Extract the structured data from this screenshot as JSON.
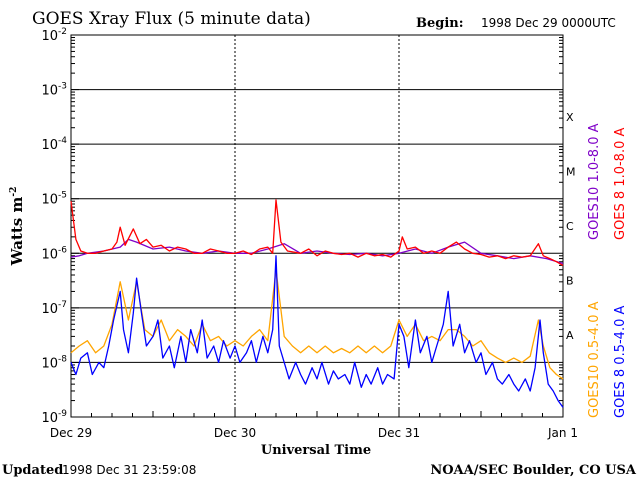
{
  "header": {
    "title": "GOES Xray Flux (5 minute data)",
    "begin_label": "Begin:",
    "begin_value": "1998 Dec 29 0000UTC"
  },
  "footer": {
    "updated_label": "Updated",
    "updated_value": "1998 Dec 31 23:59:08",
    "credit": "NOAA/SEC Boulder, CO USA"
  },
  "colors": {
    "goes8_long": "#ff0000",
    "goes10_long": "#7f00c8",
    "goes8_short": "#0000ff",
    "goes10_short": "#ffa500",
    "grid": "#000000",
    "background": "#ffffff"
  },
  "chart_data": {
    "type": "line",
    "title": "GOES Xray Flux (5 minute data)",
    "xlabel": "Universal Time",
    "ylabel": "Watts m",
    "ylabel_superscript": "-2",
    "y_scale": "log",
    "ylim": [
      1e-09,
      0.01
    ],
    "xlim_days": [
      0,
      3
    ],
    "x_ticks": [
      {
        "day": 0,
        "label": "Dec 29"
      },
      {
        "day": 1,
        "label": "Dec 30"
      },
      {
        "day": 2,
        "label": "Dec 31"
      },
      {
        "day": 3,
        "label": "Jan 1"
      }
    ],
    "y_ticks": [
      {
        "value": 1e-09,
        "base": "10",
        "exp": "-9"
      },
      {
        "value": 1e-08,
        "base": "10",
        "exp": "-8"
      },
      {
        "value": 1e-07,
        "base": "10",
        "exp": "-7"
      },
      {
        "value": 1e-06,
        "base": "10",
        "exp": "-6"
      },
      {
        "value": 1e-05,
        "base": "10",
        "exp": "-5"
      },
      {
        "value": 0.0001,
        "base": "10",
        "exp": "-4"
      },
      {
        "value": 0.001,
        "base": "10",
        "exp": "-3"
      },
      {
        "value": 0.01,
        "base": "10",
        "exp": "-2"
      }
    ],
    "flare_classes": [
      {
        "label": "A",
        "low": 1e-08,
        "high": 1e-07
      },
      {
        "label": "B",
        "low": 1e-07,
        "high": 1e-06
      },
      {
        "label": "C",
        "low": 1e-06,
        "high": 1e-05
      },
      {
        "label": "M",
        "low": 1e-05,
        "high": 0.0001
      },
      {
        "label": "X",
        "low": 0.0001,
        "high": 0.001
      }
    ],
    "grid": true,
    "series": [
      {
        "name": "GOES10 1.0-8.0 A",
        "color": "#7f00c8",
        "points": [
          [
            0,
            8.5e-07
          ],
          [
            0.05,
            9e-07
          ],
          [
            0.1,
            1e-06
          ],
          [
            0.2,
            1.1e-06
          ],
          [
            0.3,
            1.3e-06
          ],
          [
            0.35,
            1.8e-06
          ],
          [
            0.4,
            1.6e-06
          ],
          [
            0.5,
            1.2e-06
          ],
          [
            0.6,
            1.3e-06
          ],
          [
            0.7,
            1.1e-06
          ],
          [
            0.8,
            1e-06
          ],
          [
            0.9,
            1.1e-06
          ],
          [
            1.0,
            1e-06
          ],
          [
            1.1,
            1e-06
          ],
          [
            1.2,
            1.2e-06
          ],
          [
            1.3,
            1.5e-06
          ],
          [
            1.4,
            1e-06
          ],
          [
            1.5,
            1.1e-06
          ],
          [
            1.6,
            1e-06
          ],
          [
            1.7,
            9.5e-07
          ],
          [
            1.8,
            1e-06
          ],
          [
            1.9,
            9e-07
          ],
          [
            2.0,
            1e-06
          ],
          [
            2.1,
            1.2e-06
          ],
          [
            2.2,
            1e-06
          ],
          [
            2.3,
            1.3e-06
          ],
          [
            2.4,
            1.6e-06
          ],
          [
            2.5,
            1e-06
          ],
          [
            2.6,
            9e-07
          ],
          [
            2.7,
            8e-07
          ],
          [
            2.8,
            9e-07
          ],
          [
            2.9,
            8e-07
          ],
          [
            3.0,
            6.5e-07
          ]
        ]
      },
      {
        "name": "GOES 8 1.0-8.0 A",
        "color": "#ff0000",
        "points": [
          [
            0,
            9e-06
          ],
          [
            0.03,
            1.8e-06
          ],
          [
            0.06,
            1.1e-06
          ],
          [
            0.1,
            1e-06
          ],
          [
            0.15,
            1e-06
          ],
          [
            0.2,
            1.1e-06
          ],
          [
            0.25,
            1.2e-06
          ],
          [
            0.28,
            1.6e-06
          ],
          [
            0.3,
            3e-06
          ],
          [
            0.33,
            1.4e-06
          ],
          [
            0.38,
            2.8e-06
          ],
          [
            0.42,
            1.5e-06
          ],
          [
            0.46,
            1.8e-06
          ],
          [
            0.5,
            1.3e-06
          ],
          [
            0.55,
            1.4e-06
          ],
          [
            0.6,
            1.1e-06
          ],
          [
            0.65,
            1.3e-06
          ],
          [
            0.7,
            1.2e-06
          ],
          [
            0.75,
            1e-06
          ],
          [
            0.8,
            1e-06
          ],
          [
            0.85,
            1.2e-06
          ],
          [
            0.9,
            1.1e-06
          ],
          [
            0.95,
            1e-06
          ],
          [
            1.0,
            1e-06
          ],
          [
            1.05,
            1.1e-06
          ],
          [
            1.1,
            9.5e-07
          ],
          [
            1.15,
            1.2e-06
          ],
          [
            1.2,
            1.3e-06
          ],
          [
            1.23,
            1e-06
          ],
          [
            1.25,
            9.5e-06
          ],
          [
            1.28,
            1.6e-06
          ],
          [
            1.32,
            1.1e-06
          ],
          [
            1.4,
            1e-06
          ],
          [
            1.45,
            1.2e-06
          ],
          [
            1.5,
            9e-07
          ],
          [
            1.55,
            1.1e-06
          ],
          [
            1.6,
            1e-06
          ],
          [
            1.65,
            9.5e-07
          ],
          [
            1.7,
            1e-06
          ],
          [
            1.75,
            8.5e-07
          ],
          [
            1.8,
            1e-06
          ],
          [
            1.85,
            9e-07
          ],
          [
            1.9,
            9.5e-07
          ],
          [
            1.95,
            8.5e-07
          ],
          [
            2.0,
            1.1e-06
          ],
          [
            2.02,
            2e-06
          ],
          [
            2.05,
            1.2e-06
          ],
          [
            2.1,
            1.3e-06
          ],
          [
            2.15,
            1e-06
          ],
          [
            2.2,
            1.1e-06
          ],
          [
            2.25,
            1e-06
          ],
          [
            2.3,
            1.3e-06
          ],
          [
            2.35,
            1.6e-06
          ],
          [
            2.4,
            1.2e-06
          ],
          [
            2.45,
            1e-06
          ],
          [
            2.5,
            9.5e-07
          ],
          [
            2.55,
            8.5e-07
          ],
          [
            2.6,
            9e-07
          ],
          [
            2.65,
            8e-07
          ],
          [
            2.7,
            9e-07
          ],
          [
            2.75,
            8.5e-07
          ],
          [
            2.8,
            9e-07
          ],
          [
            2.85,
            1.5e-06
          ],
          [
            2.88,
            9e-07
          ],
          [
            2.92,
            8e-07
          ],
          [
            2.96,
            7e-07
          ],
          [
            3.0,
            6e-07
          ]
        ]
      },
      {
        "name": "GOES10 0.5-4.0 A",
        "color": "#ffa500",
        "points": [
          [
            0,
            1.5e-08
          ],
          [
            0.05,
            2e-08
          ],
          [
            0.1,
            2.5e-08
          ],
          [
            0.15,
            1.5e-08
          ],
          [
            0.2,
            2e-08
          ],
          [
            0.25,
            5e-08
          ],
          [
            0.3,
            3e-07
          ],
          [
            0.35,
            6e-08
          ],
          [
            0.4,
            3e-07
          ],
          [
            0.45,
            4e-08
          ],
          [
            0.5,
            3e-08
          ],
          [
            0.55,
            6e-08
          ],
          [
            0.6,
            2.5e-08
          ],
          [
            0.65,
            4e-08
          ],
          [
            0.7,
            3e-08
          ],
          [
            0.75,
            2e-08
          ],
          [
            0.8,
            5e-08
          ],
          [
            0.85,
            2.5e-08
          ],
          [
            0.9,
            3e-08
          ],
          [
            0.95,
            2e-08
          ],
          [
            1.0,
            2.5e-08
          ],
          [
            1.05,
            2e-08
          ],
          [
            1.1,
            3e-08
          ],
          [
            1.15,
            4e-08
          ],
          [
            1.2,
            2.5e-08
          ],
          [
            1.25,
            5e-07
          ],
          [
            1.3,
            3e-08
          ],
          [
            1.35,
            2e-08
          ],
          [
            1.4,
            1.5e-08
          ],
          [
            1.45,
            2e-08
          ],
          [
            1.5,
            1.5e-08
          ],
          [
            1.55,
            2e-08
          ],
          [
            1.6,
            1.5e-08
          ],
          [
            1.65,
            1.8e-08
          ],
          [
            1.7,
            1.5e-08
          ],
          [
            1.75,
            2e-08
          ],
          [
            1.8,
            1.5e-08
          ],
          [
            1.85,
            2e-08
          ],
          [
            1.9,
            1.5e-08
          ],
          [
            1.95,
            2e-08
          ],
          [
            2.0,
            6e-08
          ],
          [
            2.05,
            3e-08
          ],
          [
            2.1,
            5e-08
          ],
          [
            2.15,
            2.5e-08
          ],
          [
            2.2,
            3e-08
          ],
          [
            2.25,
            2.5e-08
          ],
          [
            2.3,
            4e-08
          ],
          [
            2.35,
            4e-08
          ],
          [
            2.4,
            3e-08
          ],
          [
            2.45,
            2e-08
          ],
          [
            2.5,
            2.5e-08
          ],
          [
            2.55,
            1.5e-08
          ],
          [
            2.6,
            1.2e-08
          ],
          [
            2.65,
            1e-08
          ],
          [
            2.7,
            1.2e-08
          ],
          [
            2.75,
            1e-08
          ],
          [
            2.8,
            1.3e-08
          ],
          [
            2.85,
            6e-08
          ],
          [
            2.88,
            2e-08
          ],
          [
            2.92,
            8e-09
          ],
          [
            2.96,
            6e-09
          ],
          [
            3.0,
            5e-09
          ]
        ]
      },
      {
        "name": "GOES 8 0.5-4.0 A",
        "color": "#0000ff",
        "points": [
          [
            0,
            1e-08
          ],
          [
            0.03,
            6e-09
          ],
          [
            0.06,
            1.2e-08
          ],
          [
            0.1,
            1.5e-08
          ],
          [
            0.13,
            6e-09
          ],
          [
            0.17,
            1e-08
          ],
          [
            0.2,
            8e-09
          ],
          [
            0.23,
            2e-08
          ],
          [
            0.26,
            6e-08
          ],
          [
            0.3,
            2e-07
          ],
          [
            0.32,
            4e-08
          ],
          [
            0.35,
            1.5e-08
          ],
          [
            0.38,
            8e-08
          ],
          [
            0.4,
            3.5e-07
          ],
          [
            0.43,
            8e-08
          ],
          [
            0.46,
            2e-08
          ],
          [
            0.5,
            3e-08
          ],
          [
            0.53,
            6e-08
          ],
          [
            0.56,
            1.2e-08
          ],
          [
            0.6,
            2e-08
          ],
          [
            0.63,
            8e-09
          ],
          [
            0.67,
            3e-08
          ],
          [
            0.7,
            1e-08
          ],
          [
            0.73,
            4e-08
          ],
          [
            0.77,
            1.5e-08
          ],
          [
            0.8,
            6e-08
          ],
          [
            0.83,
            1.2e-08
          ],
          [
            0.87,
            2e-08
          ],
          [
            0.9,
            1e-08
          ],
          [
            0.93,
            2.5e-08
          ],
          [
            0.97,
            1.2e-08
          ],
          [
            1.0,
            2e-08
          ],
          [
            1.03,
            1e-08
          ],
          [
            1.07,
            1.5e-08
          ],
          [
            1.1,
            2.5e-08
          ],
          [
            1.13,
            1e-08
          ],
          [
            1.17,
            3e-08
          ],
          [
            1.2,
            1.5e-08
          ],
          [
            1.23,
            4e-08
          ],
          [
            1.25,
            9e-07
          ],
          [
            1.27,
            2e-08
          ],
          [
            1.3,
            1e-08
          ],
          [
            1.33,
            5e-09
          ],
          [
            1.37,
            1e-08
          ],
          [
            1.4,
            6e-09
          ],
          [
            1.43,
            4e-09
          ],
          [
            1.47,
            8e-09
          ],
          [
            1.5,
            5e-09
          ],
          [
            1.53,
            1e-08
          ],
          [
            1.57,
            4e-09
          ],
          [
            1.6,
            7e-09
          ],
          [
            1.63,
            5e-09
          ],
          [
            1.67,
            6e-09
          ],
          [
            1.7,
            4e-09
          ],
          [
            1.73,
            1e-08
          ],
          [
            1.77,
            3.5e-09
          ],
          [
            1.8,
            6e-09
          ],
          [
            1.83,
            4e-09
          ],
          [
            1.87,
            8e-09
          ],
          [
            1.9,
            4e-09
          ],
          [
            1.93,
            6e-09
          ],
          [
            1.97,
            5e-09
          ],
          [
            2.0,
            5e-08
          ],
          [
            2.03,
            3e-08
          ],
          [
            2.06,
            8e-09
          ],
          [
            2.1,
            6e-08
          ],
          [
            2.13,
            1.5e-08
          ],
          [
            2.17,
            3e-08
          ],
          [
            2.2,
            1e-08
          ],
          [
            2.23,
            2e-08
          ],
          [
            2.27,
            5e-08
          ],
          [
            2.3,
            2e-07
          ],
          [
            2.33,
            2e-08
          ],
          [
            2.37,
            5e-08
          ],
          [
            2.4,
            1.5e-08
          ],
          [
            2.43,
            2.5e-08
          ],
          [
            2.47,
            1e-08
          ],
          [
            2.5,
            1.5e-08
          ],
          [
            2.53,
            6e-09
          ],
          [
            2.57,
            1e-08
          ],
          [
            2.6,
            5e-09
          ],
          [
            2.63,
            4e-09
          ],
          [
            2.67,
            6e-09
          ],
          [
            2.7,
            4e-09
          ],
          [
            2.73,
            3e-09
          ],
          [
            2.77,
            5e-09
          ],
          [
            2.8,
            3e-09
          ],
          [
            2.83,
            8e-09
          ],
          [
            2.86,
            6e-08
          ],
          [
            2.88,
            1.5e-08
          ],
          [
            2.91,
            4e-09
          ],
          [
            2.94,
            3e-09
          ],
          [
            2.97,
            2e-09
          ],
          [
            3.0,
            1.5e-09
          ]
        ]
      }
    ]
  }
}
